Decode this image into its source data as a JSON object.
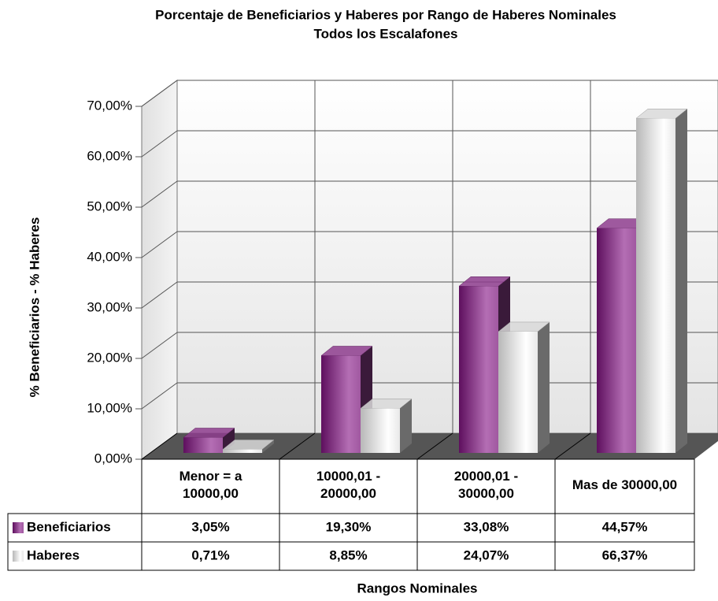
{
  "chart_data": {
    "type": "bar3d",
    "title": "Porcentaje de Beneficiarios y Haberes por Rango de Haberes Nominales",
    "subtitle": "Todos los Escalafones",
    "ylabel": "% Beneficiarios - % Haberes",
    "xlabel": "Rangos Nominales",
    "categories": [
      "Menor = a\n10000,00",
      "10000,01 -\n20000,00",
      "20000,01 -\n30000,00",
      "Mas de 30000,00"
    ],
    "series": [
      {
        "name": "Beneficiarios",
        "color": "#8e3d8e",
        "values": [
          3.05,
          19.3,
          33.08,
          44.57
        ],
        "value_labels": [
          "3,05%",
          "19,30%",
          "33,08%",
          "44,57%"
        ]
      },
      {
        "name": "Haberes",
        "color": "#d9d9d9",
        "values": [
          0.71,
          8.85,
          24.07,
          66.37
        ],
        "value_labels": [
          "0,71%",
          "8,85%",
          "24,07%",
          "66,37%"
        ]
      }
    ],
    "ylim": [
      0,
      70
    ],
    "yticks": [
      {
        "value": 0,
        "label": "0,00%"
      },
      {
        "value": 10,
        "label": "10,00%"
      },
      {
        "value": 20,
        "label": "20,00%"
      },
      {
        "value": 30,
        "label": "30,00%"
      },
      {
        "value": 40,
        "label": "40,00%"
      },
      {
        "value": 50,
        "label": "50,00%"
      },
      {
        "value": 60,
        "label": "60,00%"
      },
      {
        "value": 70,
        "label": "70,00%"
      }
    ],
    "grid": true
  }
}
